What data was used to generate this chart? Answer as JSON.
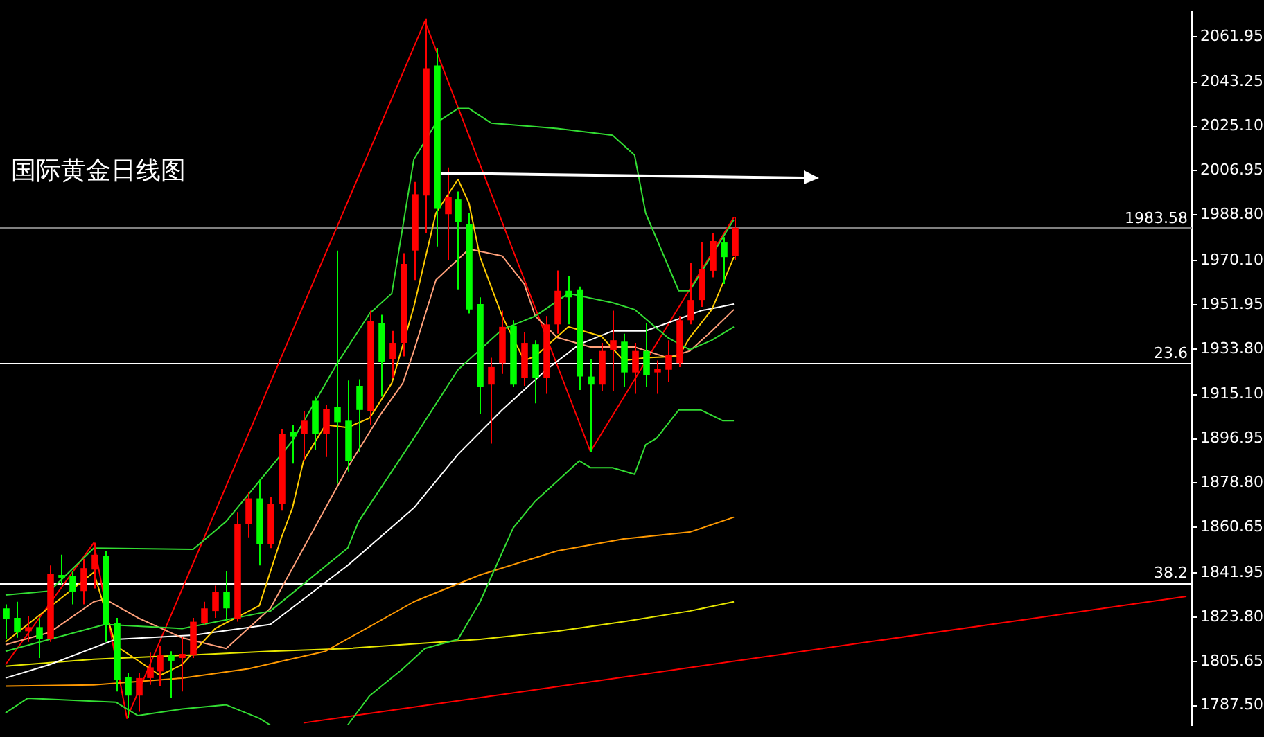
{
  "chart_data": {
    "type": "candlestick",
    "title": "国际黄金日线图",
    "categories": [
      null,
      null,
      null,
      null,
      null,
      null,
      null,
      null,
      null,
      null,
      null,
      null,
      null,
      null,
      null,
      null,
      null,
      null,
      null,
      null,
      null,
      null,
      null,
      null,
      null,
      null,
      null,
      null,
      null,
      null,
      null,
      null,
      null,
      null,
      null,
      null,
      null,
      null,
      null,
      null,
      null,
      null,
      null,
      null,
      null,
      null,
      null,
      null,
      null,
      null,
      null,
      null,
      null,
      null,
      null,
      null,
      null,
      null,
      null,
      null,
      null,
      null,
      null,
      null,
      null,
      null,
      null,
      null,
      null,
      null,
      null,
      null,
      null,
      null,
      null,
      null,
      null,
      null,
      null,
      null,
      null,
      null,
      null,
      null,
      null,
      null,
      null,
      null,
      null,
      null,
      null,
      null,
      null,
      null,
      null,
      null,
      null,
      null,
      null,
      null,
      null,
      null,
      null,
      null,
      null,
      null,
      null,
      null
    ],
    "ohlc": [
      [
        1827.4,
        1829.0,
        1814.7,
        1823.0
      ],
      [
        1823.5,
        1830.1,
        1815.3,
        1817.5
      ],
      [
        1818.0,
        1824.1,
        1813.6,
        1819.7
      ],
      [
        1819.7,
        1823.5,
        1807.0,
        1814.7
      ],
      [
        1814.7,
        1845.0,
        1813.6,
        1841.7
      ],
      [
        1841.1,
        1849.4,
        1837.3,
        1840.0
      ],
      [
        1840.6,
        1842.8,
        1829.0,
        1834.0
      ],
      [
        1834.5,
        1847.7,
        1829.0,
        1843.9
      ],
      [
        1843.3,
        1854.3,
        1835.6,
        1849.4
      ],
      [
        1848.8,
        1851.0,
        1813.6,
        1820.8
      ],
      [
        1821.3,
        1823.5,
        1793.3,
        1798.2
      ],
      [
        1799.3,
        1801.0,
        1782.3,
        1791.6
      ],
      [
        1791.6,
        1801.0,
        1785.0,
        1798.8
      ],
      [
        1798.8,
        1809.2,
        1796.0,
        1803.2
      ],
      [
        1801.5,
        1812.0,
        1795.5,
        1808.1
      ],
      [
        1808.1,
        1809.8,
        1790.5,
        1805.9
      ],
      [
        1807.0,
        1815.8,
        1793.3,
        1808.7
      ],
      [
        1808.1,
        1823.5,
        1807.0,
        1821.9
      ],
      [
        1821.3,
        1830.1,
        1820.8,
        1827.4
      ],
      [
        1826.3,
        1836.7,
        1823.5,
        1834.0
      ],
      [
        1834.0,
        1842.8,
        1821.9,
        1827.4
      ],
      [
        1823.0,
        1866.9,
        1821.9,
        1862.0
      ],
      [
        1862.0,
        1875.2,
        1856.5,
        1872.5
      ],
      [
        1872.5,
        1880.2,
        1845.0,
        1853.8
      ],
      [
        1853.8,
        1873.0,
        1852.1,
        1870.3
      ],
      [
        1870.3,
        1901.1,
        1867.5,
        1898.9
      ],
      [
        1899.9,
        1902.7,
        1886.8,
        1897.8
      ],
      [
        1898.9,
        1908.2,
        1887.9,
        1904.4
      ],
      [
        1912.6,
        1914.3,
        1892.3,
        1898.9
      ],
      [
        1898.9,
        1911.0,
        1889.5,
        1909.3
      ],
      [
        1909.9,
        1974.2,
        1878.5,
        1903.8
      ],
      [
        1904.4,
        1920.9,
        1883.5,
        1887.9
      ],
      [
        1918.7,
        1921.4,
        1891.7,
        1908.8
      ],
      [
        1908.2,
        1949.5,
        1902.7,
        1945.1
      ],
      [
        1944.5,
        1947.8,
        1914.3,
        1928.6
      ],
      [
        1929.7,
        1941.2,
        1921.9,
        1936.3
      ],
      [
        1936.3,
        1973.1,
        1930.8,
        1968.7
      ],
      [
        1974.2,
        2002.3,
        1962.1,
        1997.3
      ],
      [
        1996.8,
        2069.4,
        1981.4,
        2049.0
      ],
      [
        2050.1,
        2057.3,
        1975.9,
        1991.3
      ],
      [
        1989.1,
        2008.3,
        1970.4,
        1996.2
      ],
      [
        1995.1,
        1998.4,
        1958.3,
        1985.8
      ],
      [
        1985.2,
        1989.6,
        1948.4,
        1950.0
      ],
      [
        1952.2,
        1955.0,
        1907.1,
        1918.1
      ],
      [
        1919.2,
        1930.2,
        1895.0,
        1926.4
      ],
      [
        1928.0,
        1949.5,
        1923.6,
        1942.9
      ],
      [
        1943.4,
        1945.6,
        1918.1,
        1919.2
      ],
      [
        1921.9,
        1940.7,
        1918.7,
        1936.3
      ],
      [
        1935.7,
        1937.4,
        1911.5,
        1921.9
      ],
      [
        1921.9,
        1947.3,
        1915.4,
        1943.9
      ],
      [
        1943.9,
        1966.0,
        1940.1,
        1957.7
      ],
      [
        1957.7,
        1963.8,
        1943.9,
        1955.0
      ],
      [
        1958.3,
        1959.4,
        1917.0,
        1922.5
      ],
      [
        1922.5,
        1929.7,
        1891.7,
        1919.2
      ],
      [
        1919.2,
        1936.3,
        1916.5,
        1933.0
      ],
      [
        1933.5,
        1949.5,
        1916.5,
        1937.4
      ],
      [
        1936.8,
        1940.1,
        1918.1,
        1924.2
      ],
      [
        1924.2,
        1936.3,
        1915.4,
        1933.0
      ],
      [
        1933.0,
        1944.5,
        1918.1,
        1923.1
      ],
      [
        1924.2,
        1929.1,
        1915.4,
        1925.8
      ],
      [
        1925.3,
        1937.4,
        1920.3,
        1931.3
      ],
      [
        1928.0,
        1947.3,
        1926.4,
        1945.6
      ],
      [
        1945.6,
        1969.3,
        1943.9,
        1953.9
      ],
      [
        1953.9,
        1977.5,
        1951.1,
        1966.5
      ],
      [
        1965.9,
        1981.4,
        1963.2,
        1978.1
      ],
      [
        1977.5,
        1979.7,
        1960.5,
        1971.5
      ],
      [
        1972.0,
        1988.0,
        1970.4,
        1983.58
      ],
      null,
      null,
      null,
      null,
      null,
      null,
      null,
      null,
      null,
      null,
      null,
      null,
      null,
      null,
      null,
      null,
      null,
      null,
      null,
      null,
      null,
      null,
      null,
      null,
      null,
      null,
      null,
      null,
      null,
      null,
      null,
      null,
      null,
      null,
      null,
      null,
      null,
      null,
      null,
      null,
      null
    ],
    "colors": [
      "#00ff00",
      "#00ff00",
      "#ff0000",
      "#00ff00",
      "#ff0000",
      "#00ff00",
      "#00ff00",
      "#ff0000",
      "#ff0000",
      "#00ff00",
      "#00ff00",
      "#00ff00",
      "#ff0000",
      "#ff0000",
      "#ff0000",
      "#00ff00",
      "#ff0000",
      "#ff0000",
      "#ff0000",
      "#ff0000",
      "#00ff00",
      "#ff0000",
      "#ff0000",
      "#00ff00",
      "#ff0000",
      "#ff0000",
      "#00ff00",
      "#ff0000",
      "#00ff00",
      "#ff0000",
      "#00ff00",
      "#00ff00",
      "#00ff00",
      "#ff0000",
      "#00ff00",
      "#ff0000",
      "#ff0000",
      "#ff0000",
      "#ff0000",
      "#00ff00",
      "#ff0000",
      "#00ff00",
      "#00ff00",
      "#00ff00",
      "#ff0000",
      "#ff0000",
      "#00ff00",
      "#ff0000",
      "#00ff00",
      "#ff0000",
      "#ff0000",
      "#00ff00",
      "#00ff00",
      "#00ff00",
      "#ff0000",
      "#ff0000",
      "#00ff00",
      "#ff0000",
      "#00ff00",
      "#ff0000",
      "#ff0000",
      "#ff0000",
      "#ff0000",
      "#ff0000",
      "#ff0000",
      "#00ff00",
      "#ff0000",
      null,
      null,
      null,
      null,
      null,
      null,
      null,
      null,
      null,
      null,
      null,
      null,
      null,
      null,
      null,
      null,
      null,
      null,
      null,
      null,
      null,
      null,
      null,
      null,
      null,
      null,
      null,
      null,
      null,
      null,
      null,
      null,
      null,
      null,
      null,
      null,
      null,
      null,
      null,
      null,
      null
    ],
    "series": [
      {
        "type": "line",
        "color": "#33dd33",
        "values": [
          1832.9,
          null,
          null,
          null,
          1834.5,
          null,
          null,
          null,
          1852.1,
          null,
          null,
          null,
          null,
          null,
          null,
          null,
          null,
          1851.6,
          null,
          null,
          1863.1,
          null,
          null,
          null,
          null,
          null,
          1896.1,
          null,
          null,
          null,
          1927.5,
          null,
          null,
          1948.4,
          null,
          1956.6,
          null,
          2011.6,
          null,
          2026.5,
          null,
          2032.5,
          2032.5,
          null,
          2026.5,
          null,
          null,
          null,
          null,
          null,
          2024.3,
          null,
          null,
          null,
          null,
          2021.5,
          null,
          2013.3,
          1989.6,
          null,
          null,
          1957.7,
          1957.7,
          null,
          null,
          null,
          1986.9,
          null,
          null,
          null,
          null,
          null,
          null,
          null,
          null,
          null,
          null,
          null,
          null,
          null,
          null,
          null,
          null,
          null,
          null,
          null,
          null,
          null,
          null,
          null,
          null,
          null,
          null,
          null,
          null,
          null,
          null,
          null,
          null,
          null,
          null,
          null,
          null,
          null,
          null,
          null,
          null,
          null
        ]
      },
      {
        "type": "line",
        "color": "#33dd33",
        "values": [
          1809.8,
          null,
          null,
          null,
          null,
          null,
          null,
          null,
          null,
          1820.8,
          null,
          null,
          null,
          null,
          null,
          null,
          1819.1,
          null,
          null,
          null,
          null,
          null,
          null,
          null,
          1826.3,
          null,
          null,
          null,
          null,
          null,
          null,
          1852.1,
          1863.1,
          null,
          null,
          null,
          null,
          1897.2,
          null,
          null,
          null,
          1925.3,
          null,
          null,
          null,
          1941.8,
          null,
          null,
          1947.3,
          null,
          null,
          1956.6,
          null,
          null,
          null,
          1952.8,
          null,
          1950.0,
          null,
          null,
          1938.5,
          null,
          1933.5,
          null,
          1937.4,
          null,
          1942.9,
          null,
          null,
          null,
          null,
          null,
          null,
          null,
          null,
          null,
          null,
          null,
          null,
          null,
          null,
          null,
          null,
          null,
          null,
          null,
          null,
          null,
          null,
          null,
          null,
          null,
          null,
          null,
          null,
          null,
          null,
          null,
          null,
          null,
          null,
          null,
          null,
          null,
          null,
          null,
          null,
          null
        ]
      },
      {
        "type": "line",
        "color": "#33dd33",
        "values": [
          1784.5,
          null,
          1790.5,
          null,
          null,
          null,
          null,
          null,
          null,
          null,
          1788.9,
          null,
          1783.4,
          null,
          null,
          null,
          1786.1,
          null,
          null,
          null,
          1787.8,
          null,
          null,
          1782.3,
          1779.5,
          null,
          null,
          null,
          null,
          null,
          null,
          null,
          null,
          null,
          null,
          null,
          null,
          null,
          null,
          null,
          null,
          null,
          null,
          null,
          null,
          null,
          null,
          null,
          null,
          null,
          null,
          null,
          null,
          null,
          null,
          null,
          null,
          null,
          null,
          null,
          null,
          null,
          null,
          null,
          null,
          null,
          null,
          null,
          null,
          null,
          null,
          null,
          null,
          null,
          null,
          null,
          null,
          null,
          null,
          null,
          null,
          null,
          null,
          null,
          null,
          null,
          null,
          null,
          null,
          null,
          null,
          null,
          null,
          null,
          null,
          null,
          null,
          null,
          null,
          null,
          null,
          null,
          null,
          null,
          null,
          null,
          null,
          null
        ]
      },
      {
        "type": "line",
        "color": "#33dd33",
        "values": [
          null,
          null,
          null,
          null,
          null,
          null,
          null,
          null,
          null,
          null,
          null,
          null,
          null,
          null,
          null,
          null,
          null,
          null,
          null,
          null,
          null,
          null,
          null,
          null,
          null,
          null,
          null,
          null,
          null,
          null,
          null,
          1779.5,
          null,
          1791.6,
          null,
          null,
          1802.6,
          null,
          1810.9,
          null,
          null,
          1814.7,
          null,
          1830.1,
          null,
          null,
          1860.4,
          null,
          1871.4,
          null,
          1879.6,
          null,
          1887.9,
          1885.1,
          null,
          1885.1,
          null,
          1882.4,
          1894.5,
          1897.2,
          null,
          1908.8,
          null,
          1908.8,
          null,
          1904.4,
          1904.4,
          null,
          null,
          null,
          null,
          null,
          null,
          null,
          null,
          null,
          null,
          null,
          null,
          null,
          null,
          null,
          null,
          null,
          null,
          null,
          null,
          null,
          null,
          null,
          null,
          null,
          null,
          null,
          null,
          null,
          null,
          null,
          null,
          null,
          null,
          null,
          null,
          null,
          null,
          null,
          null,
          null
        ]
      },
      {
        "type": "line",
        "color": "#ffcc00",
        "values": [
          1813.6,
          null,
          null,
          null,
          null,
          null,
          null,
          null,
          1842.2,
          null,
          1812.0,
          null,
          null,
          null,
          1799.9,
          null,
          1804.3,
          null,
          null,
          1819.1,
          null,
          null,
          null,
          1828.5,
          null,
          1856.5,
          1868.6,
          1887.9,
          null,
          1902.7,
          null,
          1901.6,
          null,
          1905.5,
          null,
          1919.8,
          null,
          1951.1,
          null,
          1989.6,
          null,
          2003.4,
          1993.5,
          1971.5,
          null,
          1947.3,
          null,
          1929.1,
          1930.8,
          null,
          null,
          1942.9,
          null,
          null,
          1939.0,
          null,
          1929.1,
          null,
          1930.2,
          null,
          null,
          1930.8,
          1938.5,
          null,
          1950.0,
          null,
          1971.5,
          null,
          null,
          null,
          null,
          null,
          null,
          null,
          null,
          null,
          null,
          null,
          null,
          null,
          null,
          null,
          null,
          null,
          null,
          null,
          null,
          null,
          null,
          null,
          null,
          null,
          null,
          null,
          null,
          null,
          null,
          null,
          null,
          null,
          null,
          null,
          null,
          null,
          null,
          null,
          null,
          null
        ]
      },
      {
        "type": "line",
        "color": "#ffa07a",
        "values": [
          1812.5,
          null,
          null,
          null,
          1817.5,
          null,
          null,
          null,
          1830.1,
          1831.2,
          null,
          null,
          1823.5,
          null,
          null,
          null,
          1815.3,
          null,
          null,
          null,
          1810.9,
          null,
          null,
          null,
          1827.4,
          null,
          null,
          1852.1,
          null,
          null,
          null,
          1885.1,
          null,
          null,
          1907.1,
          null,
          1919.8,
          1933.0,
          null,
          1962.1,
          null,
          null,
          1974.8,
          null,
          null,
          1972.0,
          null,
          1960.5,
          1947.3,
          null,
          1938.5,
          null,
          null,
          1934.6,
          null,
          null,
          null,
          1934.6,
          null,
          null,
          1930.2,
          null,
          1933.0,
          null,
          1941.2,
          null,
          1950.0,
          null,
          null,
          null,
          null,
          null,
          null,
          null,
          null,
          null,
          null,
          null,
          null,
          null,
          null,
          null,
          null,
          null,
          null,
          null,
          null,
          null,
          null,
          null,
          null,
          null,
          null,
          null,
          null,
          null,
          null,
          null,
          null,
          null,
          null,
          null,
          null,
          null,
          null,
          null,
          null,
          null
        ]
      },
      {
        "type": "line",
        "color": "#ffffff",
        "values": [
          1798.8,
          null,
          null,
          null,
          1804.3,
          null,
          null,
          null,
          null,
          null,
          1814.7,
          null,
          null,
          null,
          null,
          null,
          null,
          1816.4,
          null,
          null,
          null,
          null,
          null,
          null,
          1820.8,
          null,
          null,
          null,
          null,
          null,
          null,
          1845.0,
          null,
          null,
          null,
          null,
          null,
          1868.6,
          null,
          null,
          null,
          1890.6,
          null,
          null,
          null,
          1908.8,
          null,
          null,
          null,
          1925.3,
          null,
          null,
          1935.7,
          null,
          null,
          1941.2,
          null,
          null,
          1941.2,
          null,
          1944.5,
          null,
          null,
          1949.5,
          null,
          null,
          1952.2,
          null,
          null,
          null,
          null,
          null,
          null,
          null,
          null,
          null,
          null,
          null,
          null,
          null,
          null,
          null,
          null,
          null,
          null,
          null,
          null,
          null,
          null,
          null,
          null,
          null,
          null,
          null,
          null,
          null,
          null,
          null,
          null,
          null,
          null,
          null,
          null,
          null,
          null,
          null,
          null,
          null
        ]
      },
      {
        "type": "line",
        "color": "#ff9900",
        "values": [
          1795.5,
          null,
          null,
          null,
          null,
          null,
          null,
          null,
          1796.0,
          null,
          null,
          null,
          null,
          null,
          null,
          null,
          1798.8,
          null,
          null,
          null,
          null,
          null,
          1802.6,
          null,
          null,
          null,
          null,
          null,
          null,
          1809.8,
          null,
          null,
          null,
          null,
          null,
          null,
          null,
          1830.1,
          null,
          null,
          null,
          null,
          null,
          1841.1,
          null,
          null,
          null,
          null,
          null,
          null,
          1851.0,
          null,
          null,
          null,
          null,
          null,
          1855.9,
          null,
          null,
          null,
          null,
          null,
          1858.7,
          null,
          null,
          null,
          1864.8,
          null,
          null,
          null,
          null,
          null,
          null,
          null,
          null,
          null,
          null,
          null,
          null,
          null,
          null,
          null,
          null,
          null,
          null,
          null,
          null,
          null,
          null,
          null,
          null,
          null,
          null,
          null,
          null,
          null,
          null,
          null,
          null,
          null,
          null,
          null,
          null,
          null,
          null,
          null,
          null,
          null
        ]
      },
      {
        "type": "line",
        "color": "#e6e600",
        "values": [
          1803.7,
          null,
          null,
          null,
          null,
          null,
          null,
          null,
          1806.5,
          null,
          null,
          null,
          null,
          null,
          null,
          null,
          1808.1,
          null,
          null,
          null,
          null,
          null,
          null,
          null,
          1809.8,
          null,
          null,
          null,
          null,
          null,
          null,
          1810.9,
          null,
          null,
          null,
          null,
          null,
          null,
          null,
          null,
          null,
          null,
          null,
          1814.7,
          null,
          null,
          null,
          null,
          null,
          null,
          1818.0,
          null,
          null,
          null,
          null,
          null,
          1821.9,
          null,
          null,
          null,
          null,
          null,
          1826.3,
          null,
          null,
          null,
          1830.1,
          null,
          null,
          null,
          null,
          null,
          null,
          null,
          null,
          null,
          null,
          null,
          null,
          null,
          null,
          null,
          null,
          null,
          null,
          null,
          null,
          null,
          null,
          null,
          null,
          null,
          null,
          null,
          null,
          null,
          null,
          null,
          null,
          null,
          null,
          null,
          null,
          null,
          null,
          null,
          null,
          null
        ]
      },
      {
        "type": "line",
        "color": "#ff0000",
        "values": [
          1804.3,
          null,
          null,
          null,
          null,
          null,
          null,
          null,
          1854.3,
          null,
          null,
          1782.3,
          null,
          null,
          null,
          null,
          null,
          null,
          null,
          null,
          null,
          null,
          null,
          null,
          null,
          null,
          null,
          null,
          null,
          null,
          null,
          null,
          null,
          null,
          null,
          null,
          null,
          null,
          2068.3,
          null,
          null,
          null,
          null,
          null,
          null,
          null,
          null,
          null,
          null,
          null,
          null,
          null,
          null,
          1891.7,
          null,
          null,
          null,
          null,
          null,
          null,
          null,
          null,
          null,
          null,
          null,
          null,
          1987.9,
          null,
          null,
          null,
          null,
          null,
          null,
          null,
          null,
          null,
          null,
          null,
          null,
          null,
          null,
          null,
          null,
          null,
          null,
          null,
          null,
          null,
          null,
          null,
          null,
          null,
          null,
          null,
          null,
          null,
          null,
          null,
          null,
          null,
          null,
          null,
          null,
          null,
          null,
          null,
          null,
          null
        ]
      },
      {
        "type": "line",
        "color": "#ff0000",
        "values": [
          null,
          null,
          null,
          null,
          null,
          null,
          null,
          null,
          null,
          null,
          null,
          null,
          null,
          null,
          null,
          null,
          null,
          null,
          null,
          null,
          null,
          null,
          null,
          null,
          null,
          null,
          null,
          1780.4,
          null,
          null,
          null,
          null,
          null,
          null,
          null,
          null,
          null,
          null,
          null,
          null,
          null,
          null,
          null,
          null,
          null,
          null,
          null,
          null,
          null,
          null,
          null,
          null,
          null,
          null,
          null,
          null,
          null,
          null,
          null,
          null,
          null,
          null,
          null,
          null,
          null,
          null,
          null,
          null,
          null,
          null,
          null,
          null,
          null,
          null,
          null,
          null,
          null,
          null,
          null,
          null,
          null,
          null,
          null,
          null,
          null,
          null,
          null,
          null,
          null,
          null,
          null,
          null,
          null,
          null,
          null,
          null,
          null,
          null,
          null,
          null,
          null,
          null,
          null,
          null,
          null,
          null,
          null,
          1832.3
        ]
      }
    ],
    "ref_lines": [
      {
        "axis": "y",
        "value": 1983.58,
        "label": "1983.58",
        "color": "#808080"
      },
      {
        "axis": "y",
        "value": 1928.0,
        "color": "#ffffff"
      },
      {
        "axis": "y",
        "value": 1837.8,
        "color": "#ffffff"
      }
    ],
    "annotations": [
      {
        "text": "23.6",
        "y": 1928.0
      },
      {
        "text": "38.2",
        "y": 1837.8
      }
    ],
    "ylim": [
      1779.5,
      2072.1
    ],
    "yticks": [
      2061.95,
      2043.25,
      {
        "value": 2025.1,
        "label": "2025.10"
      },
      2006.95,
      {
        "value": 1988.8,
        "label": "1988.80"
      },
      {
        "value": 1970.1,
        "label": "1970.10"
      },
      1951.95,
      {
        "value": 1933.8,
        "label": "1933.80"
      },
      {
        "value": 1915.1,
        "label": "1915.10"
      },
      1896.95,
      {
        "value": 1878.8,
        "label": "1878.80"
      },
      1860.65,
      1841.95,
      {
        "value": 1823.8,
        "label": "1823.80"
      },
      1805.65,
      {
        "value": 1787.5,
        "label": "1787.50"
      }
    ],
    "tick_labels": "y",
    "grid": false,
    "legend": false,
    "marker": "none"
  }
}
